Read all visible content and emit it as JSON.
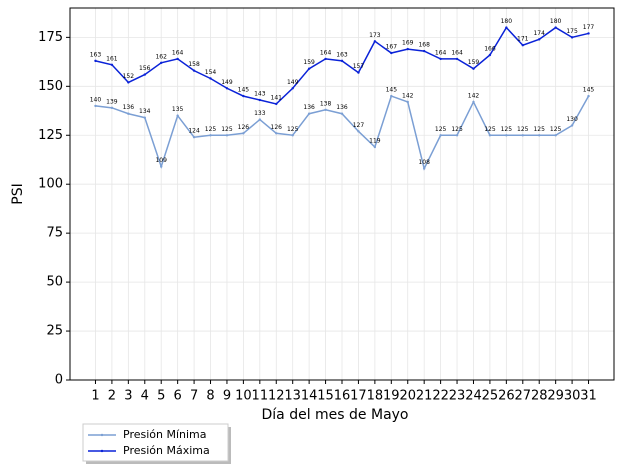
{
  "chart_data": {
    "type": "line",
    "x_label": "Día del mes de  Mayo",
    "y_label": "PSI",
    "categories": [
      "1",
      "2",
      "3",
      "4",
      "5",
      "6",
      "7",
      "8",
      "9",
      "10",
      "11",
      "12",
      "13",
      "14",
      "15",
      "16",
      "17",
      "18",
      "19",
      "20",
      "21",
      "22",
      "23",
      "24",
      "25",
      "26",
      "27",
      "28",
      "29",
      "30",
      "31"
    ],
    "series": [
      {
        "name": "Presión Mínima",
        "color": "#7b9fd4",
        "values": [
          140,
          139,
          136,
          134,
          109,
          135,
          124,
          125,
          125,
          126,
          133,
          126,
          125,
          136,
          138,
          136,
          127,
          119,
          145,
          142,
          108,
          125,
          125,
          142,
          125,
          125,
          125,
          125,
          125,
          130,
          145
        ]
      },
      {
        "name": "Presión Máxima",
        "color": "#0a22d8",
        "values": [
          163,
          161,
          152,
          156,
          162,
          164,
          158,
          154,
          149,
          145,
          143,
          141,
          149,
          159,
          164,
          163,
          157,
          173,
          167,
          169,
          168,
          164,
          164,
          159,
          166,
          180,
          171,
          174,
          180,
          175,
          177
        ]
      }
    ],
    "ylim": [
      0,
      190
    ],
    "yticks": [
      0,
      25,
      50,
      75,
      100,
      125,
      150,
      175
    ],
    "grid": true,
    "legend": "lower left"
  }
}
